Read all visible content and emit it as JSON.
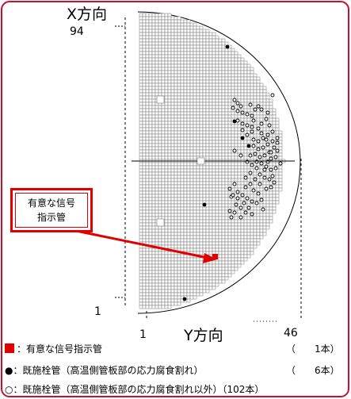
{
  "colors": {
    "frame": "#c8102e",
    "signal": "#e00000",
    "grid": "#7a7a7a",
    "marker": "#000000"
  },
  "axes": {
    "x_title": "X方向",
    "x_max_label": "94",
    "x_min_label": "1",
    "y_title": "Y方向",
    "y_min_label": "1",
    "y_max_label": "46"
  },
  "callout": {
    "line1": "有意な信号",
    "line2": "指示管"
  },
  "legend": [
    {
      "symbol": "red-square",
      "label": "：有意な信号指示管",
      "count": "（　　1本）"
    },
    {
      "symbol": "filled-circle",
      "label": "●：既施栓管（高温側管板部の応力腐食割れ）",
      "count": "（　　6本）"
    },
    {
      "symbol": "open-circle",
      "label": "○：既施栓管（高温側管板部の応力腐食割れ以外）（102本）",
      "count": ""
    }
  ]
}
